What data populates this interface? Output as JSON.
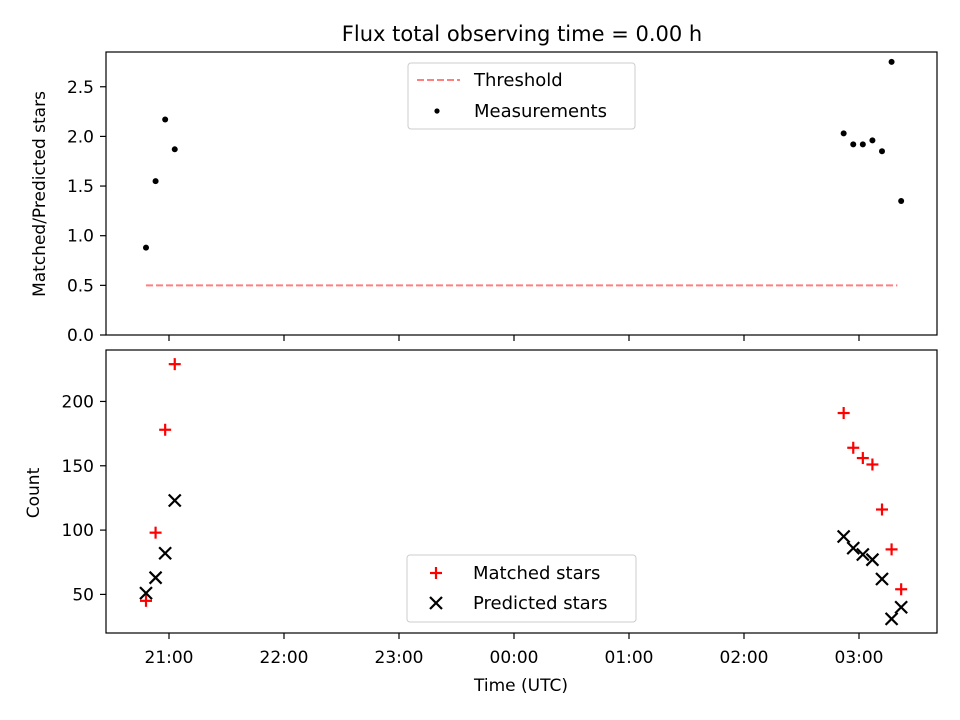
{
  "title": "Flux total observing time = 0.00 h",
  "xlabel": "Time (UTC)",
  "chart_data": [
    {
      "type": "scatter",
      "panel": "top",
      "ylabel": "Matched/Predicted stars",
      "ylim": [
        0,
        2.85
      ],
      "yticks": [
        "0.0",
        "0.5",
        "1.0",
        "1.5",
        "2.0",
        "2.5"
      ],
      "xticks": [
        "21:00",
        "22:00",
        "23:00",
        "00:00",
        "01:00",
        "02:00",
        "03:00"
      ],
      "xticks_visible": false,
      "legend_position": "upper center",
      "series": [
        {
          "name": "Threshold",
          "style": "dashed-line",
          "color": "#ff7f7f",
          "x": [
            "20:48",
            "03:20"
          ],
          "y": [
            0.5,
            0.5
          ]
        },
        {
          "name": "Measurements",
          "style": "dot",
          "color": "#000000",
          "x": [
            "20:48",
            "20:53",
            "20:58",
            "21:03",
            "02:52",
            "02:57",
            "03:02",
            "03:07",
            "03:12",
            "03:17",
            "03:22"
          ],
          "y": [
            0.88,
            1.55,
            2.17,
            1.87,
            2.03,
            1.92,
            1.92,
            1.96,
            1.85,
            2.75,
            1.35
          ]
        }
      ]
    },
    {
      "type": "scatter",
      "panel": "bottom",
      "ylabel": "Count",
      "ylim": [
        20,
        240
      ],
      "yticks": [
        "50",
        "100",
        "150",
        "200"
      ],
      "xticks": [
        "21:00",
        "22:00",
        "23:00",
        "00:00",
        "01:00",
        "02:00",
        "03:00"
      ],
      "legend_position": "lower center",
      "series": [
        {
          "name": "Matched stars",
          "marker": "plus",
          "color": "#ff0000",
          "x": [
            "20:48",
            "20:53",
            "20:58",
            "21:03",
            "02:52",
            "02:57",
            "03:02",
            "03:07",
            "03:12",
            "03:17",
            "03:22"
          ],
          "y": [
            45,
            98,
            178,
            229,
            191,
            164,
            156,
            151,
            116,
            85,
            54
          ]
        },
        {
          "name": "Predicted stars",
          "marker": "x",
          "color": "#000000",
          "x": [
            "20:48",
            "20:53",
            "20:58",
            "21:03",
            "02:52",
            "02:57",
            "03:02",
            "03:07",
            "03:12",
            "03:17",
            "03:22"
          ],
          "y": [
            51,
            63,
            82,
            123,
            95,
            86,
            81,
            77,
            62,
            31,
            40
          ]
        }
      ]
    }
  ]
}
